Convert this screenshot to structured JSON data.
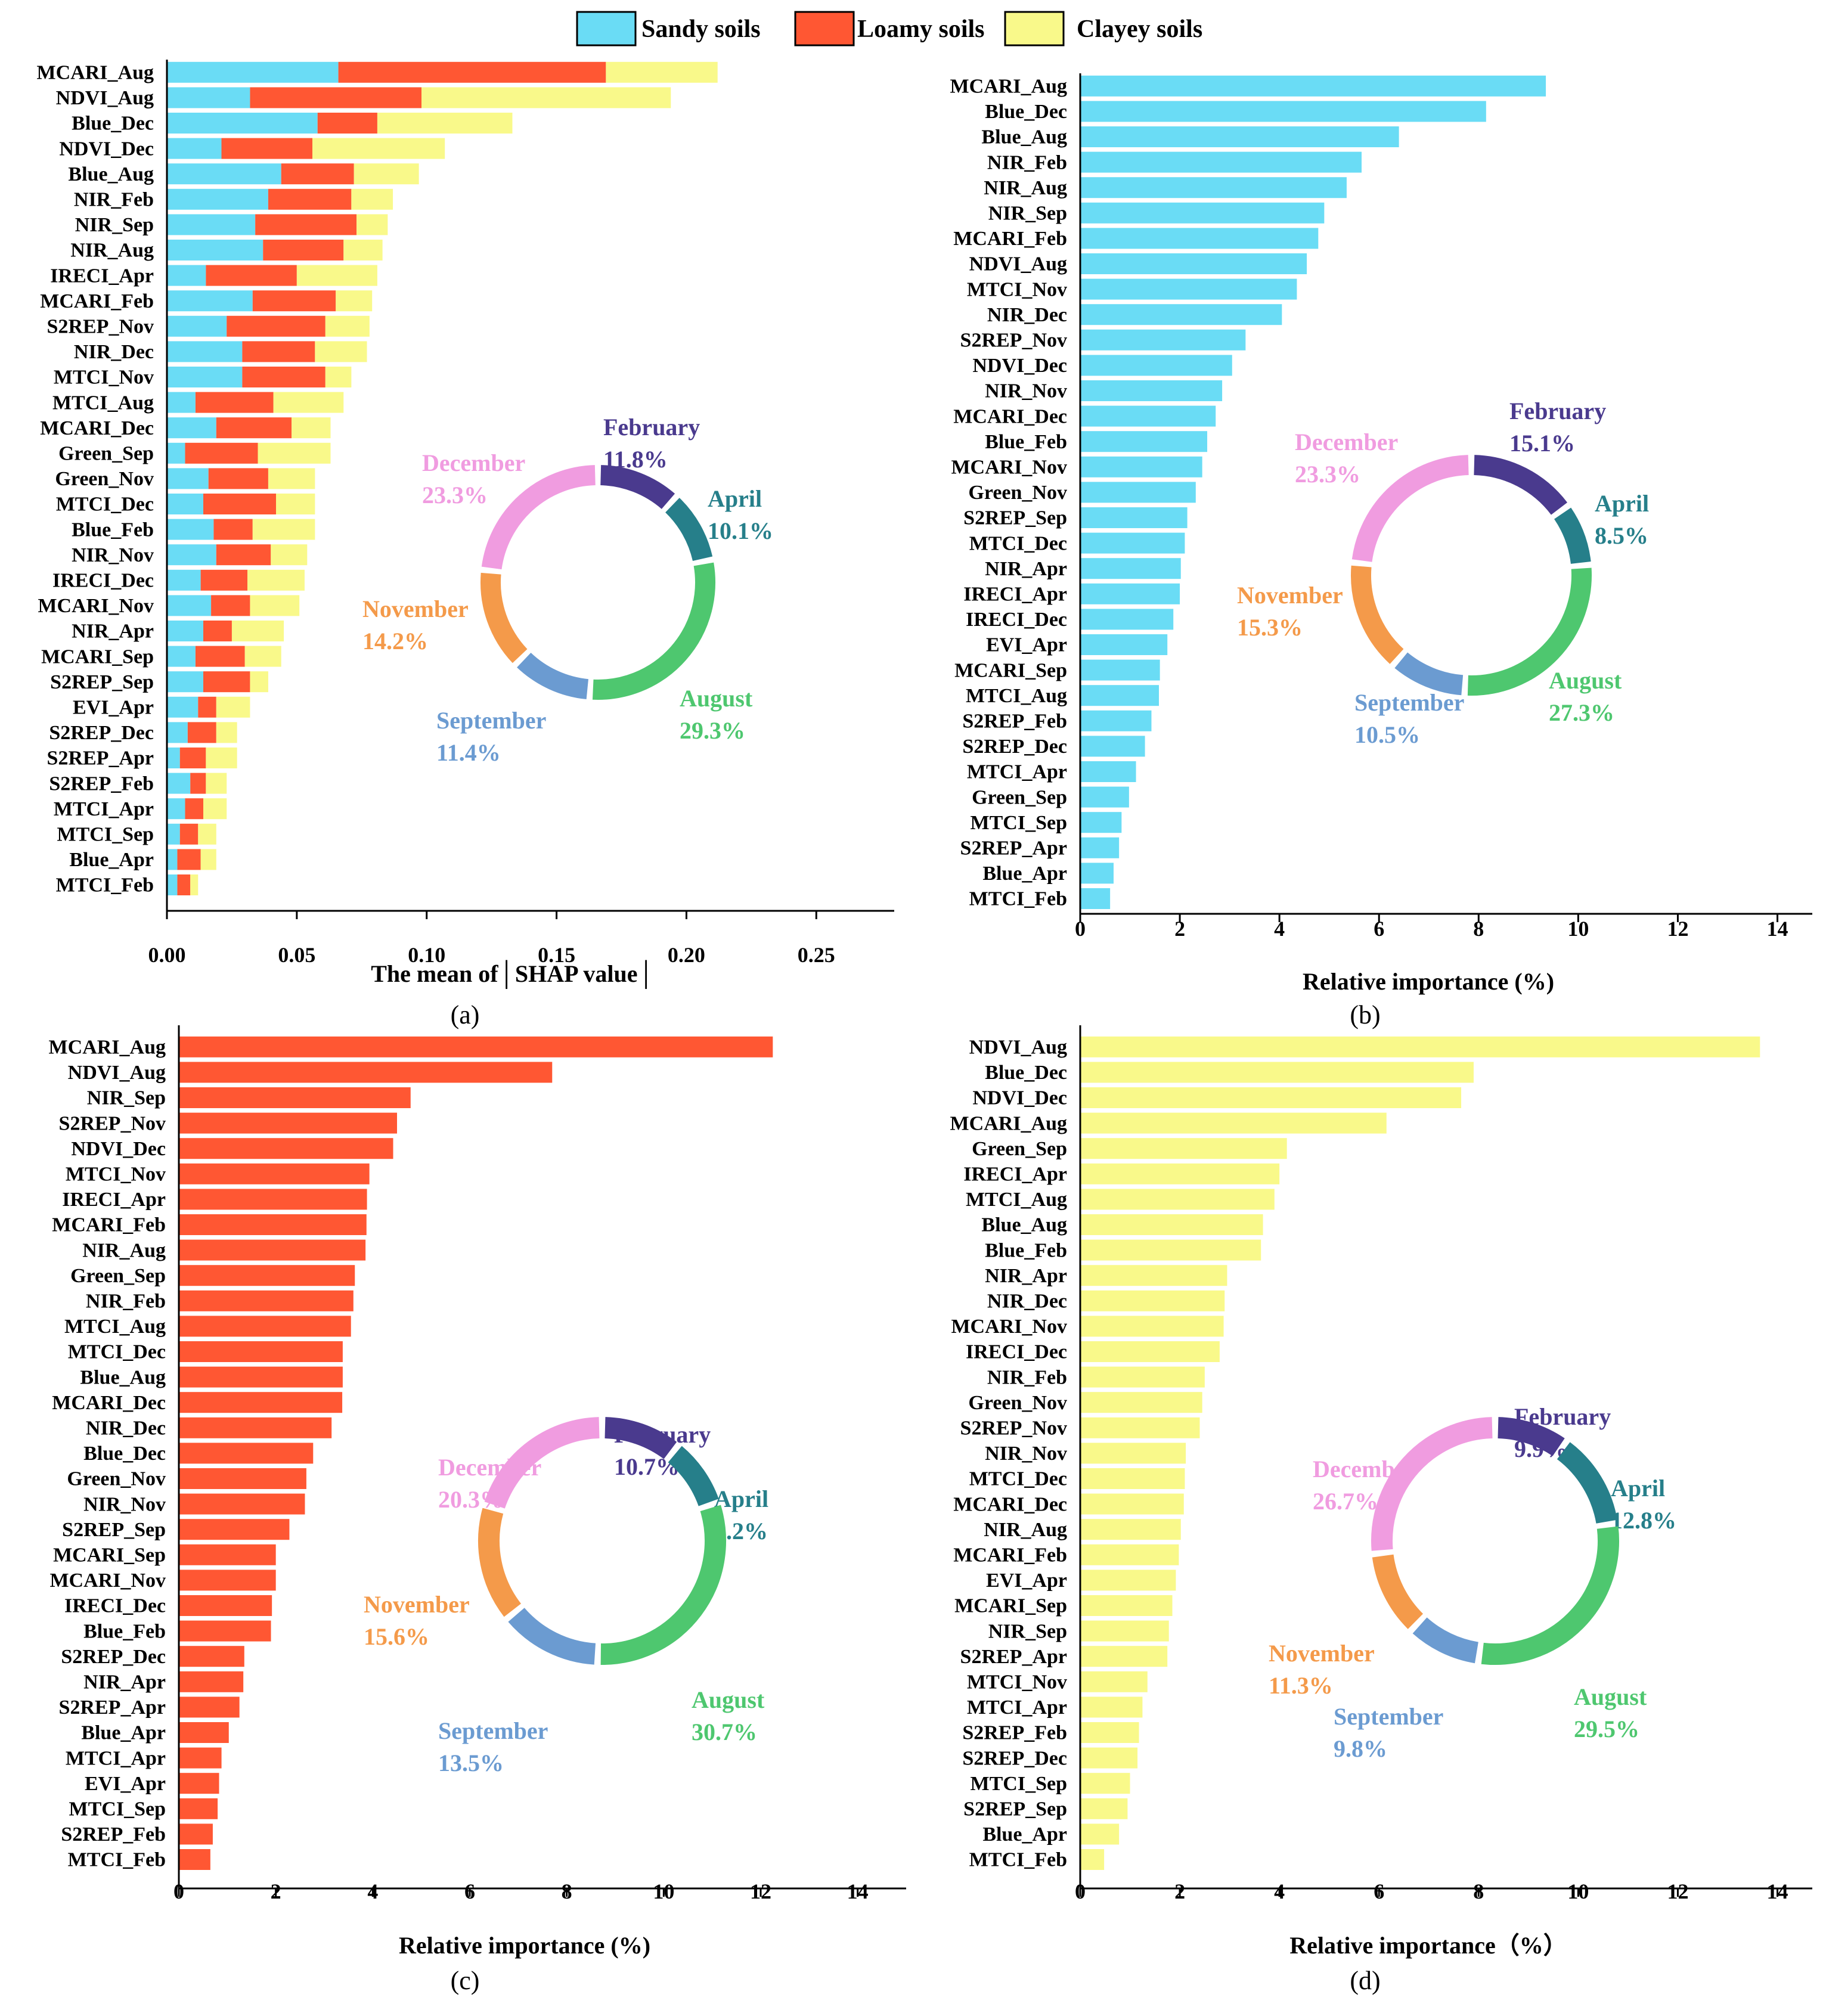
{
  "legend": {
    "items": [
      {
        "label": "Sandy soils",
        "color": "#6adcf5"
      },
      {
        "label": "Loamy soils",
        "color": "#ff5733"
      },
      {
        "label": "Clayey soils",
        "color": "#f9f98a"
      }
    ]
  },
  "colors": {
    "sandy": "#6adcf5",
    "loamy": "#ff5733",
    "clayey": "#f9f98a",
    "month_February": "#4a3a8e",
    "month_April": "#267f8a",
    "month_August": "#4ec76f",
    "month_September": "#6b9bd1",
    "month_November": "#f49a4a",
    "month_December": "#f09ce0"
  },
  "chart_data": [
    {
      "type": "bar",
      "orientation": "horizontal",
      "stacked": true,
      "panel_label": "(a)",
      "xlabel": "The mean of│SHAP value│",
      "xlim": [
        0,
        0.28
      ],
      "xticks": [
        0.0,
        0.05,
        0.1,
        0.15,
        0.2,
        0.25
      ],
      "xtick_labels": [
        "0.00",
        "0.05",
        "0.10",
        "0.15",
        "0.20",
        "0.25"
      ],
      "categories": [
        "MCARI_Aug",
        "NDVI_Aug",
        "Blue_Dec",
        "NDVI_Dec",
        "Blue_Aug",
        "NIR_Feb",
        "NIR_Sep",
        "NIR_Aug",
        "IRECI_Apr",
        "MCARI_Feb",
        "S2REP_Nov",
        "NIR_Dec",
        "MTCI_Nov",
        "MTCI_Aug",
        "MCARI_Dec",
        "Green_Sep",
        "Green_Nov",
        "MTCI_Dec",
        "Blue_Feb",
        "NIR_Nov",
        "IRECI_Dec",
        "MCARI_Nov",
        "NIR_Apr",
        "MCARI_Sep",
        "S2REP_Sep",
        "EVI_Apr",
        "S2REP_Dec",
        "S2REP_Apr",
        "S2REP_Feb",
        "MTCI_Apr",
        "MTCI_Sep",
        "Blue_Apr",
        "MTCI_Feb"
      ],
      "series": [
        {
          "name": "Sandy soils",
          "color": "#6adcf5",
          "values": [
            0.066,
            0.032,
            0.058,
            0.021,
            0.044,
            0.039,
            0.034,
            0.037,
            0.015,
            0.033,
            0.023,
            0.029,
            0.029,
            0.011,
            0.019,
            0.007,
            0.016,
            0.014,
            0.018,
            0.019,
            0.013,
            0.017,
            0.014,
            0.011,
            0.014,
            0.012,
            0.008,
            0.005,
            0.009,
            0.007,
            0.005,
            0.004,
            0.004
          ]
        },
        {
          "name": "Loamy soils",
          "color": "#ff5733",
          "values": [
            0.103,
            0.066,
            0.023,
            0.035,
            0.028,
            0.032,
            0.039,
            0.031,
            0.035,
            0.032,
            0.038,
            0.028,
            0.032,
            0.03,
            0.029,
            0.028,
            0.023,
            0.028,
            0.015,
            0.021,
            0.018,
            0.015,
            0.011,
            0.019,
            0.018,
            0.007,
            0.011,
            0.01,
            0.006,
            0.007,
            0.007,
            0.009,
            0.005
          ]
        },
        {
          "name": "Clayey soils",
          "color": "#f9f98a",
          "values": [
            0.043,
            0.096,
            0.052,
            0.051,
            0.025,
            0.016,
            0.012,
            0.015,
            0.031,
            0.014,
            0.017,
            0.02,
            0.01,
            0.027,
            0.015,
            0.028,
            0.018,
            0.015,
            0.024,
            0.014,
            0.022,
            0.019,
            0.02,
            0.014,
            0.007,
            0.013,
            0.008,
            0.012,
            0.008,
            0.009,
            0.007,
            0.006,
            0.003
          ]
        }
      ],
      "donut": {
        "labels": [
          "February",
          "April",
          "August",
          "September",
          "November",
          "December"
        ],
        "values": [
          11.8,
          10.1,
          29.3,
          11.4,
          14.2,
          23.3
        ],
        "value_labels": [
          "11.8%",
          "10.1%",
          "29.3%",
          "11.4%",
          "14.2%",
          "23.3%"
        ]
      }
    },
    {
      "type": "bar",
      "orientation": "horizontal",
      "panel_label": "(b)",
      "xlabel": "Relative importance (%)",
      "xlim": [
        0,
        14.7
      ],
      "xticks": [
        0,
        2,
        4,
        6,
        8,
        10,
        12,
        14
      ],
      "xtick_labels": [
        "0",
        "2",
        "4",
        "6",
        "8",
        "10",
        "12",
        "14"
      ],
      "color": "#6adcf5",
      "categories": [
        "MCARI_Aug",
        "Blue_Dec",
        "Blue_Aug",
        "NIR_Feb",
        "NIR_Aug",
        "NIR_Sep",
        "MCARI_Feb",
        "NDVI_Aug",
        "MTCI_Nov",
        "NIR_Dec",
        "S2REP_Nov",
        "NDVI_Dec",
        "NIR_Nov",
        "MCARI_Dec",
        "Blue_Feb",
        "MCARI_Nov",
        "Green_Nov",
        "S2REP_Sep",
        "MTCI_Dec",
        "NIR_Apr",
        "IRECI_Apr",
        "IRECI_Dec",
        "EVI_Apr",
        "MCARI_Sep",
        "MTCI_Aug",
        "S2REP_Feb",
        "S2REP_Dec",
        "MTCI_Apr",
        "Green_Sep",
        "MTCI_Sep",
        "S2REP_Apr",
        "Blue_Apr",
        "MTCI_Feb"
      ],
      "values": [
        9.35,
        8.15,
        6.4,
        5.65,
        5.35,
        4.9,
        4.78,
        4.55,
        4.35,
        4.05,
        3.32,
        3.05,
        2.85,
        2.72,
        2.55,
        2.45,
        2.32,
        2.15,
        2.1,
        2.02,
        2.0,
        1.87,
        1.75,
        1.6,
        1.58,
        1.43,
        1.3,
        1.12,
        0.98,
        0.83,
        0.78,
        0.67,
        0.6
      ],
      "donut": {
        "labels": [
          "February",
          "April",
          "August",
          "September",
          "November",
          "December"
        ],
        "values": [
          15.1,
          8.5,
          27.3,
          10.5,
          15.3,
          23.3
        ],
        "value_labels": [
          "15.1%",
          "8.5%",
          "27.3%",
          "10.5%",
          "15.3%",
          "23.3%"
        ]
      }
    },
    {
      "type": "bar",
      "orientation": "horizontal",
      "panel_label": "(c)",
      "xlabel": "Relative importance (%)",
      "xlim": [
        0,
        15.0
      ],
      "xticks": [
        0,
        2,
        4,
        6,
        8,
        10,
        12,
        14
      ],
      "xtick_labels": [
        "0",
        "2",
        "4",
        "6",
        "8",
        "10",
        "12",
        "14"
      ],
      "color": "#ff5733",
      "categories": [
        "MCARI_Aug",
        "NDVI_Aug",
        "NIR_Sep",
        "S2REP_Nov",
        "NDVI_Dec",
        "MTCI_Nov",
        "IRECI_Apr",
        "MCARI_Feb",
        "NIR_Aug",
        "Green_Sep",
        "NIR_Feb",
        "MTCI_Aug",
        "MTCI_Dec",
        "Blue_Aug",
        "MCARI_Dec",
        "NIR_Dec",
        "Blue_Dec",
        "Green_Nov",
        "NIR_Nov",
        "S2REP_Sep",
        "MCARI_Sep",
        "MCARI_Nov",
        "IRECI_Dec",
        "Blue_Feb",
        "S2REP_Dec",
        "NIR_Apr",
        "S2REP_Apr",
        "Blue_Apr",
        "MTCI_Apr",
        "EVI_Apr",
        "MTCI_Sep",
        "S2REP_Feb",
        "MTCI_Feb"
      ],
      "values": [
        12.25,
        7.7,
        4.78,
        4.5,
        4.42,
        3.93,
        3.88,
        3.87,
        3.85,
        3.63,
        3.6,
        3.55,
        3.38,
        3.38,
        3.37,
        3.15,
        2.77,
        2.63,
        2.6,
        2.28,
        2.0,
        2.0,
        1.92,
        1.9,
        1.35,
        1.33,
        1.25,
        1.03,
        0.88,
        0.83,
        0.8,
        0.7,
        0.65
      ],
      "donut": {
        "labels": [
          "February",
          "April",
          "August",
          "September",
          "November",
          "December"
        ],
        "values": [
          10.7,
          9.2,
          30.7,
          13.5,
          15.6,
          20.3
        ],
        "value_labels": [
          "10.7%",
          "9.2%",
          "30.7%",
          "13.5%",
          "15.6%",
          "20.3%"
        ]
      }
    },
    {
      "type": "bar",
      "orientation": "horizontal",
      "panel_label": "(d)",
      "xlabel": "Relative importance（%）",
      "xlim": [
        0,
        14.7
      ],
      "xticks": [
        0,
        2,
        4,
        6,
        8,
        10,
        12,
        14
      ],
      "xtick_labels": [
        "0",
        "2",
        "4",
        "6",
        "8",
        "10",
        "12",
        "14"
      ],
      "color": "#f9f98a",
      "categories": [
        "NDVI_Aug",
        "Blue_Dec",
        "NDVI_Dec",
        "MCARI_Aug",
        "Green_Sep",
        "IRECI_Apr",
        "MTCI_Aug",
        "Blue_Aug",
        "Blue_Feb",
        "NIR_Apr",
        "NIR_Dec",
        "MCARI_Nov",
        "IRECI_Dec",
        "NIR_Feb",
        "Green_Nov",
        "S2REP_Nov",
        "NIR_Nov",
        "MTCI_Dec",
        "MCARI_Dec",
        "NIR_Aug",
        "MCARI_Feb",
        "EVI_Apr",
        "MCARI_Sep",
        "NIR_Sep",
        "S2REP_Apr",
        "MTCI_Nov",
        "MTCI_Apr",
        "S2REP_Feb",
        "S2REP_Dec",
        "MTCI_Sep",
        "S2REP_Sep",
        "Blue_Apr",
        "MTCI_Feb"
      ],
      "values": [
        13.65,
        7.9,
        7.65,
        6.15,
        4.15,
        4.0,
        3.9,
        3.67,
        3.63,
        2.95,
        2.9,
        2.88,
        2.8,
        2.5,
        2.45,
        2.4,
        2.12,
        2.1,
        2.08,
        2.02,
        1.98,
        1.92,
        1.85,
        1.78,
        1.75,
        1.35,
        1.25,
        1.18,
        1.15,
        1.0,
        0.95,
        0.78,
        0.48
      ],
      "donut": {
        "labels": [
          "February",
          "April",
          "August",
          "September",
          "November",
          "December"
        ],
        "values": [
          9.9,
          12.8,
          29.5,
          9.8,
          11.3,
          26.7
        ],
        "value_labels": [
          "9.9%",
          "12.8%",
          "29.5%",
          "9.8%",
          "11.3%",
          "26.7%"
        ]
      }
    }
  ]
}
